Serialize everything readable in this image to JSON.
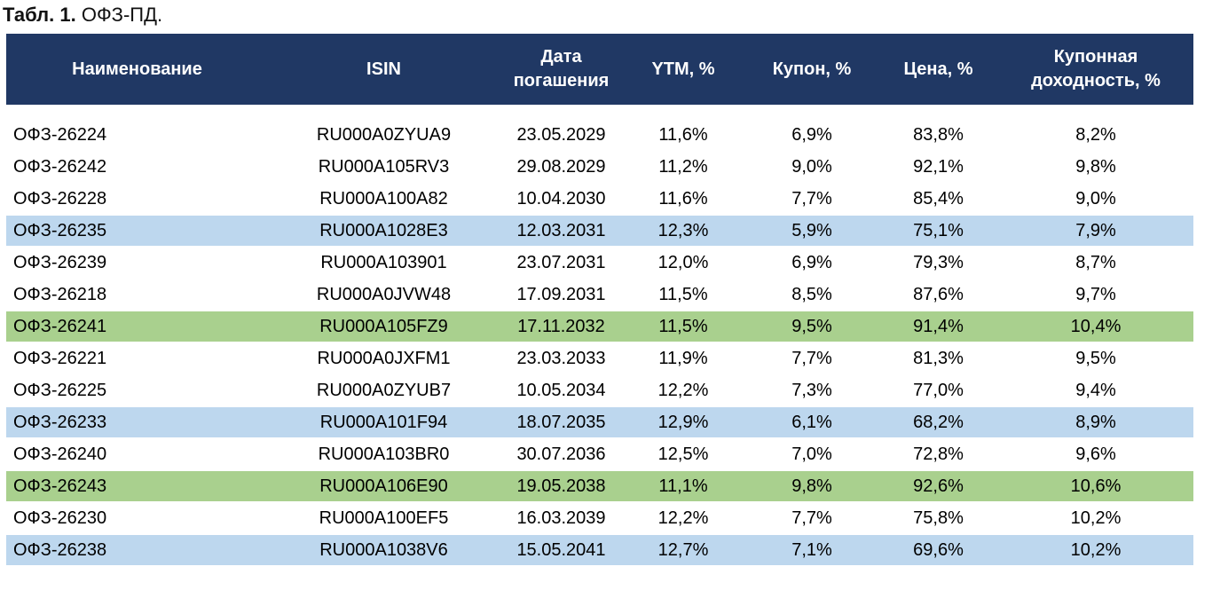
{
  "title": {
    "prefix": "Табл. 1.",
    "rest": " ОФЗ-ПД."
  },
  "colors": {
    "header_bg": "#203864",
    "header_text": "#FFFFFF",
    "row_blue": "#BDD7EE",
    "row_green": "#A9D08E",
    "body_text": "#000000"
  },
  "table": {
    "columns": [
      {
        "key": "name",
        "label": "Наименование"
      },
      {
        "key": "isin",
        "label": "ISIN"
      },
      {
        "key": "maturity",
        "label": "Дата погашения"
      },
      {
        "key": "ytm",
        "label": "YTM, %"
      },
      {
        "key": "coupon",
        "label": "Купон, %"
      },
      {
        "key": "price",
        "label": "Цена, %"
      },
      {
        "key": "coupon_yield",
        "label": "Купонная доходность, %"
      }
    ],
    "rows": [
      {
        "name": "ОФЗ-26224",
        "isin": "RU000A0ZYUA9",
        "maturity": "23.05.2029",
        "ytm": "11,6%",
        "coupon": "6,9%",
        "price": "83,8%",
        "coupon_yield": "8,2%",
        "highlight": "none"
      },
      {
        "name": "ОФЗ-26242",
        "isin": "RU000A105RV3",
        "maturity": "29.08.2029",
        "ytm": "11,2%",
        "coupon": "9,0%",
        "price": "92,1%",
        "coupon_yield": "9,8%",
        "highlight": "none"
      },
      {
        "name": "ОФЗ-26228",
        "isin": "RU000A100A82",
        "maturity": "10.04.2030",
        "ytm": "11,6%",
        "coupon": "7,7%",
        "price": "85,4%",
        "coupon_yield": "9,0%",
        "highlight": "none"
      },
      {
        "name": "ОФЗ-26235",
        "isin": "RU000A1028E3",
        "maturity": "12.03.2031",
        "ytm": "12,3%",
        "coupon": "5,9%",
        "price": "75,1%",
        "coupon_yield": "7,9%",
        "highlight": "blue"
      },
      {
        "name": "ОФЗ-26239",
        "isin": "RU000A103901",
        "maturity": "23.07.2031",
        "ytm": "12,0%",
        "coupon": "6,9%",
        "price": "79,3%",
        "coupon_yield": "8,7%",
        "highlight": "none"
      },
      {
        "name": "ОФЗ-26218",
        "isin": "RU000A0JVW48",
        "maturity": "17.09.2031",
        "ytm": "11,5%",
        "coupon": "8,5%",
        "price": "87,6%",
        "coupon_yield": "9,7%",
        "highlight": "none"
      },
      {
        "name": "ОФЗ-26241",
        "isin": "RU000A105FZ9",
        "maturity": "17.11.2032",
        "ytm": "11,5%",
        "coupon": "9,5%",
        "price": "91,4%",
        "coupon_yield": "10,4%",
        "highlight": "green"
      },
      {
        "name": "ОФЗ-26221",
        "isin": "RU000A0JXFM1",
        "maturity": "23.03.2033",
        "ytm": "11,9%",
        "coupon": "7,7%",
        "price": "81,3%",
        "coupon_yield": "9,5%",
        "highlight": "none"
      },
      {
        "name": "ОФЗ-26225",
        "isin": "RU000A0ZYUB7",
        "maturity": "10.05.2034",
        "ytm": "12,2%",
        "coupon": "7,3%",
        "price": "77,0%",
        "coupon_yield": "9,4%",
        "highlight": "none"
      },
      {
        "name": "ОФЗ-26233",
        "isin": "RU000A101F94",
        "maturity": "18.07.2035",
        "ytm": "12,9%",
        "coupon": "6,1%",
        "price": "68,2%",
        "coupon_yield": "8,9%",
        "highlight": "blue"
      },
      {
        "name": "ОФЗ-26240",
        "isin": "RU000A103BR0",
        "maturity": "30.07.2036",
        "ytm": "12,5%",
        "coupon": "7,0%",
        "price": "72,8%",
        "coupon_yield": "9,6%",
        "highlight": "none"
      },
      {
        "name": "ОФЗ-26243",
        "isin": "RU000A106E90",
        "maturity": "19.05.2038",
        "ytm": "11,1%",
        "coupon": "9,8%",
        "price": "92,6%",
        "coupon_yield": "10,6%",
        "highlight": "green"
      },
      {
        "name": "ОФЗ-26230",
        "isin": "RU000A100EF5",
        "maturity": "16.03.2039",
        "ytm": "12,2%",
        "coupon": "7,7%",
        "price": "75,8%",
        "coupon_yield": "10,2%",
        "highlight": "none"
      },
      {
        "name": "ОФЗ-26238",
        "isin": "RU000A1038V6",
        "maturity": "15.05.2041",
        "ytm": "12,7%",
        "coupon": "7,1%",
        "price": "69,6%",
        "coupon_yield": "10,2%",
        "highlight": "blue"
      }
    ]
  }
}
